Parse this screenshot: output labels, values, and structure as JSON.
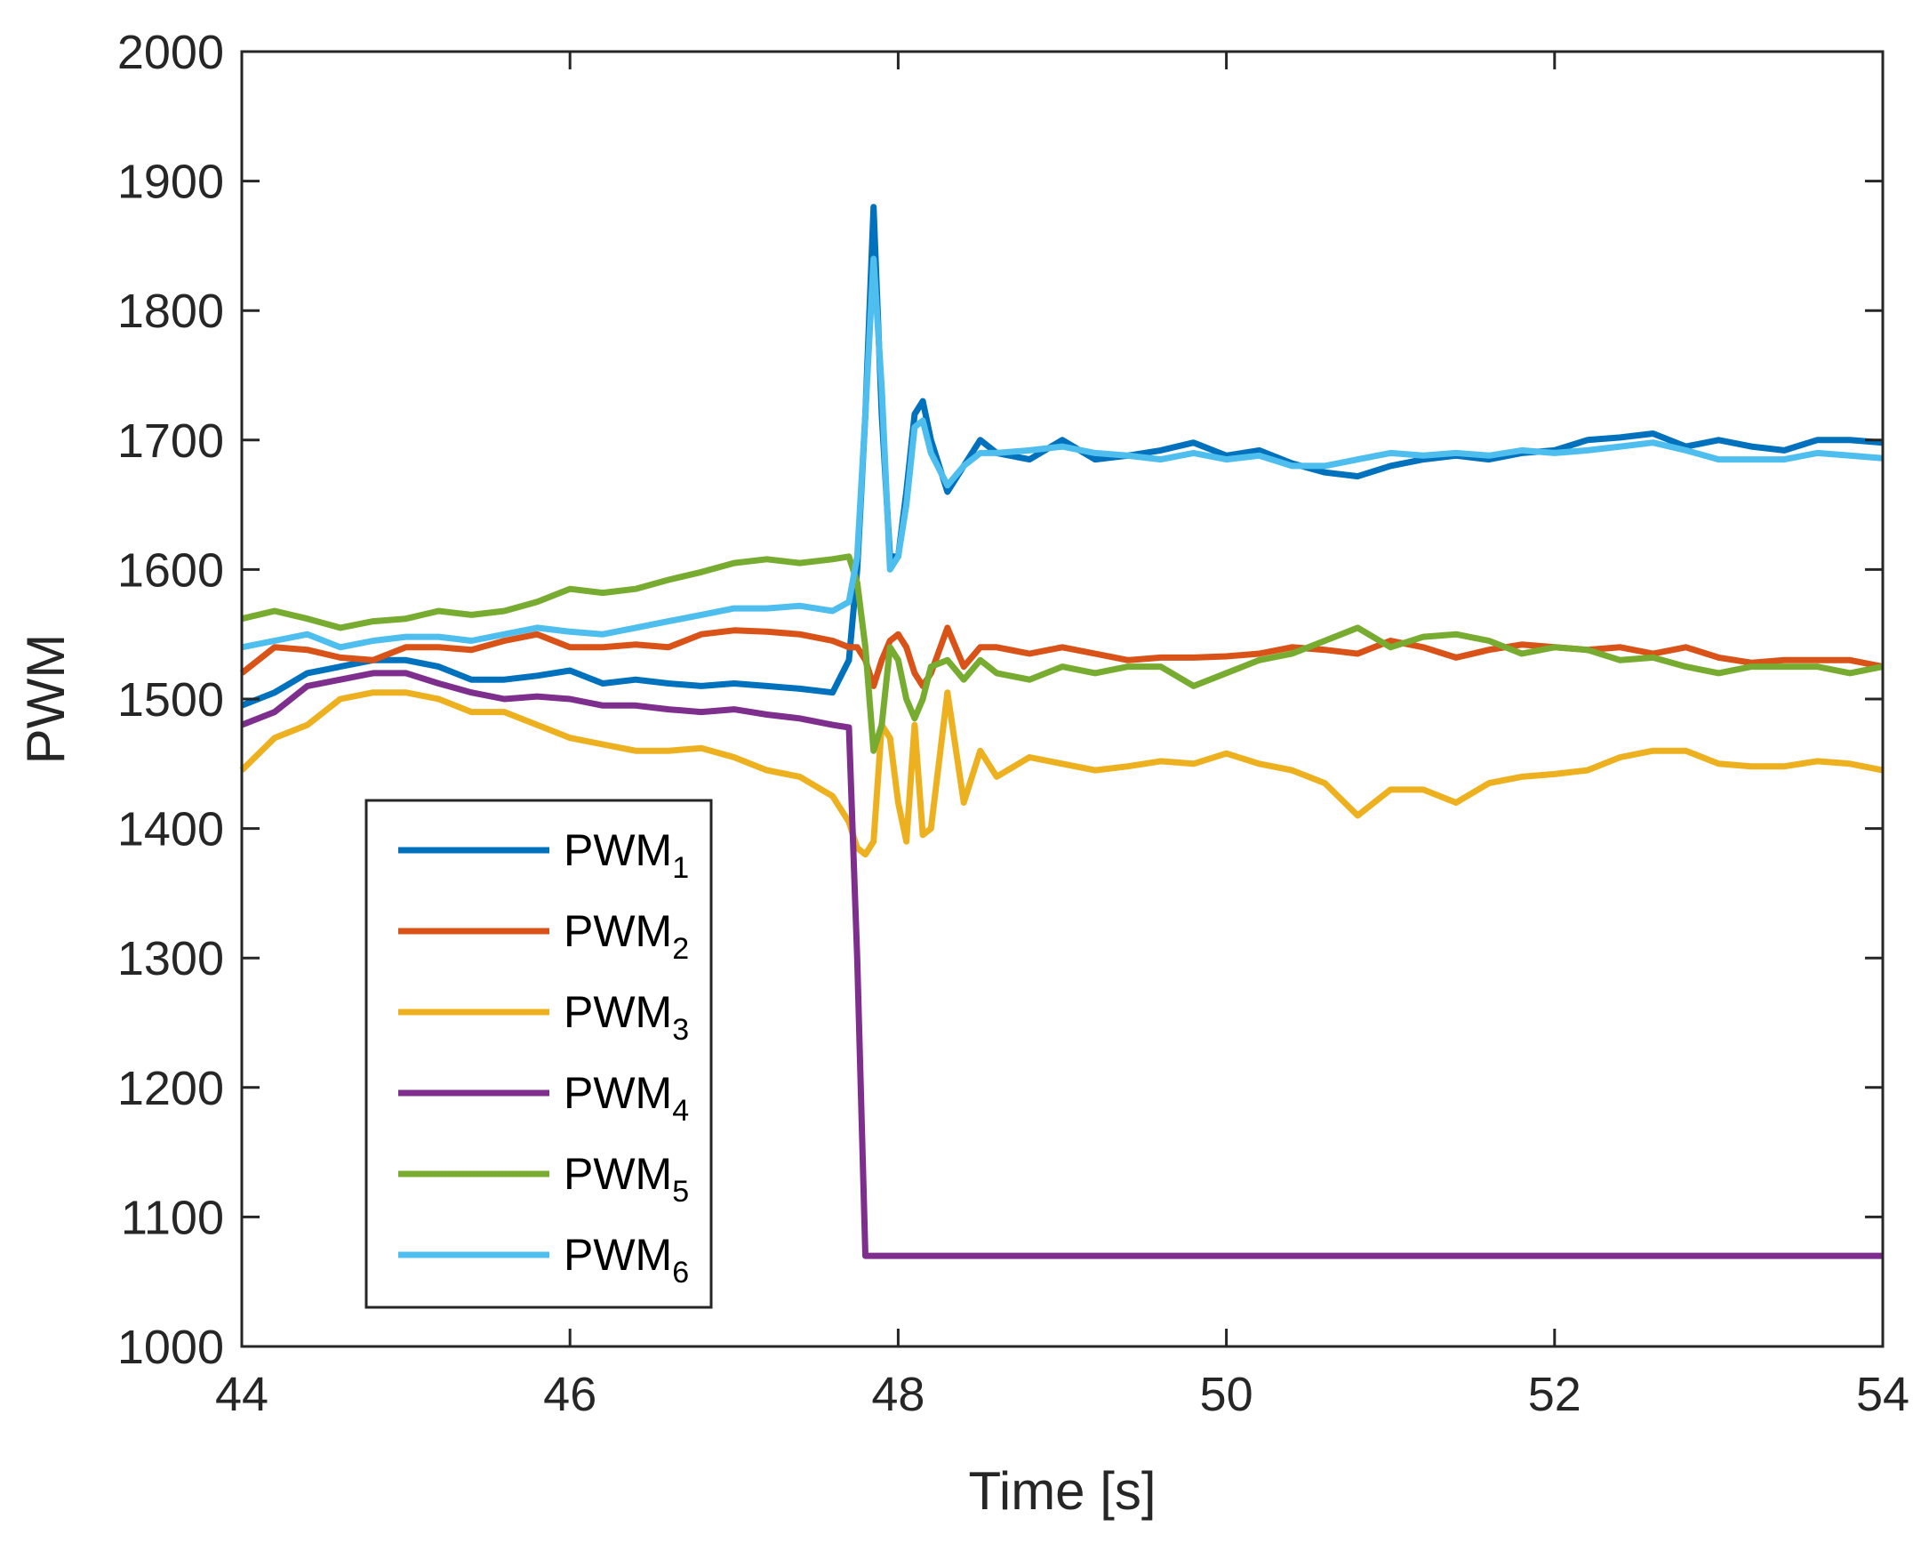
{
  "chart_data": {
    "type": "line",
    "title": "",
    "xlabel": "Time [s]",
    "ylabel": "PWM",
    "xlim": [
      44,
      54
    ],
    "ylim": [
      1000,
      2000
    ],
    "xticks": [
      44,
      46,
      48,
      50,
      52,
      54
    ],
    "yticks": [
      1000,
      1100,
      1200,
      1300,
      1400,
      1500,
      1600,
      1700,
      1800,
      1900,
      2000
    ],
    "legend_position": "lower-left",
    "x": [
      44,
      44.2,
      44.4,
      44.6,
      44.8,
      45,
      45.2,
      45.4,
      45.6,
      45.8,
      46,
      46.2,
      46.4,
      46.6,
      46.8,
      47,
      47.2,
      47.4,
      47.6,
      47.7,
      47.75,
      47.8,
      47.85,
      47.9,
      47.95,
      48,
      48.05,
      48.1,
      48.15,
      48.2,
      48.3,
      48.4,
      48.5,
      48.6,
      48.8,
      49,
      49.2,
      49.4,
      49.6,
      49.8,
      50,
      50.2,
      50.4,
      50.6,
      50.8,
      51,
      51.2,
      51.4,
      51.6,
      51.8,
      52,
      52.2,
      52.4,
      52.6,
      52.8,
      53,
      53.2,
      53.4,
      53.6,
      53.8,
      54
    ],
    "series": [
      {
        "name": "PWM",
        "sub": "1",
        "color": "#0072BD",
        "values": [
          1495,
          1505,
          1520,
          1525,
          1530,
          1530,
          1525,
          1515,
          1515,
          1518,
          1522,
          1512,
          1515,
          1512,
          1510,
          1512,
          1510,
          1508,
          1505,
          1530,
          1600,
          1720,
          1880,
          1720,
          1610,
          1610,
          1660,
          1720,
          1730,
          1700,
          1660,
          1680,
          1700,
          1690,
          1685,
          1700,
          1685,
          1688,
          1692,
          1698,
          1688,
          1692,
          1682,
          1675,
          1672,
          1680,
          1685,
          1688,
          1685,
          1690,
          1692,
          1700,
          1702,
          1705,
          1695,
          1700,
          1695,
          1692,
          1700,
          1700,
          1698
        ]
      },
      {
        "name": "PWM",
        "sub": "2",
        "color": "#D95319",
        "values": [
          1520,
          1540,
          1538,
          1532,
          1530,
          1540,
          1540,
          1538,
          1545,
          1550,
          1540,
          1540,
          1542,
          1540,
          1550,
          1553,
          1552,
          1550,
          1545,
          1540,
          1540,
          1530,
          1510,
          1530,
          1545,
          1550,
          1540,
          1520,
          1510,
          1520,
          1555,
          1525,
          1540,
          1540,
          1535,
          1540,
          1535,
          1530,
          1532,
          1532,
          1533,
          1535,
          1540,
          1538,
          1535,
          1545,
          1540,
          1532,
          1538,
          1542,
          1540,
          1538,
          1540,
          1535,
          1540,
          1532,
          1528,
          1530,
          1530,
          1530,
          1525
        ]
      },
      {
        "name": "PWM",
        "sub": "3",
        "color": "#EDB120",
        "values": [
          1445,
          1470,
          1480,
          1500,
          1505,
          1505,
          1500,
          1490,
          1490,
          1480,
          1470,
          1465,
          1460,
          1460,
          1462,
          1455,
          1445,
          1440,
          1425,
          1405,
          1385,
          1380,
          1390,
          1480,
          1470,
          1420,
          1390,
          1480,
          1395,
          1400,
          1505,
          1420,
          1460,
          1440,
          1455,
          1450,
          1445,
          1448,
          1452,
          1450,
          1458,
          1450,
          1445,
          1435,
          1410,
          1430,
          1430,
          1420,
          1435,
          1440,
          1442,
          1445,
          1455,
          1460,
          1460,
          1450,
          1448,
          1448,
          1452,
          1450,
          1445
        ]
      },
      {
        "name": "PWM",
        "sub": "4",
        "color": "#7E2F8E",
        "values": [
          1480,
          1490,
          1510,
          1515,
          1520,
          1520,
          1512,
          1505,
          1500,
          1502,
          1500,
          1495,
          1495,
          1492,
          1490,
          1492,
          1488,
          1485,
          1480,
          1478,
          1300,
          1070,
          1070,
          1070,
          1070,
          1070,
          1070,
          1070,
          1070,
          1070,
          1070,
          1070,
          1070,
          1070,
          1070,
          1070,
          1070,
          1070,
          1070,
          1070,
          1070,
          1070,
          1070,
          1070,
          1070,
          1070,
          1070,
          1070,
          1070,
          1070,
          1070,
          1070,
          1070,
          1070,
          1070,
          1070,
          1070,
          1070,
          1070,
          1070,
          1070
        ]
      },
      {
        "name": "PWM",
        "sub": "5",
        "color": "#77AC30",
        "values": [
          1562,
          1568,
          1562,
          1555,
          1560,
          1562,
          1568,
          1565,
          1568,
          1575,
          1585,
          1582,
          1585,
          1592,
          1598,
          1605,
          1608,
          1605,
          1608,
          1610,
          1590,
          1540,
          1460,
          1480,
          1540,
          1530,
          1500,
          1485,
          1500,
          1525,
          1530,
          1515,
          1530,
          1520,
          1515,
          1525,
          1520,
          1525,
          1525,
          1510,
          1520,
          1530,
          1535,
          1545,
          1555,
          1540,
          1548,
          1550,
          1545,
          1535,
          1540,
          1538,
          1530,
          1532,
          1525,
          1520,
          1525,
          1525,
          1525,
          1520,
          1525
        ]
      },
      {
        "name": "PWM",
        "sub": "6",
        "color": "#4DBEEE",
        "values": [
          1540,
          1545,
          1550,
          1540,
          1545,
          1548,
          1548,
          1545,
          1550,
          1555,
          1552,
          1550,
          1555,
          1560,
          1565,
          1570,
          1570,
          1572,
          1568,
          1575,
          1610,
          1720,
          1840,
          1740,
          1600,
          1610,
          1650,
          1710,
          1715,
          1690,
          1665,
          1680,
          1690,
          1690,
          1692,
          1695,
          1690,
          1688,
          1685,
          1690,
          1685,
          1688,
          1680,
          1680,
          1685,
          1690,
          1688,
          1690,
          1688,
          1692,
          1690,
          1692,
          1695,
          1698,
          1692,
          1685,
          1685,
          1685,
          1690,
          1688,
          1686
        ]
      }
    ]
  }
}
